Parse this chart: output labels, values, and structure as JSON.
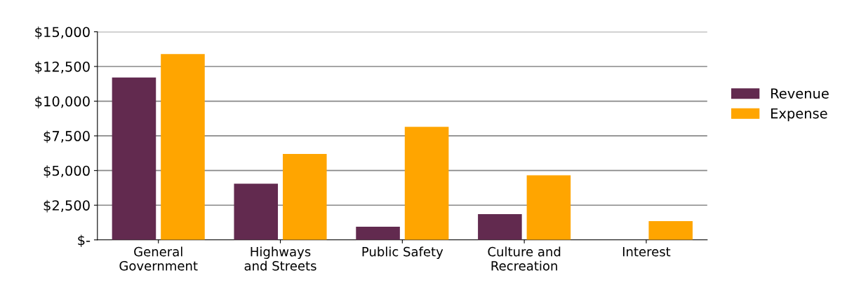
{
  "chart_data": {
    "type": "bar",
    "categories": [
      "General\nGovernment",
      "Highways\nand Streets",
      "Public Safety",
      "Culture and\nRecreation",
      "Interest"
    ],
    "series": [
      {
        "name": "Revenue",
        "color": "#622a4f",
        "values": [
          11700,
          4050,
          950,
          1850,
          0
        ]
      },
      {
        "name": "Expense",
        "color": "#ffa500",
        "values": [
          13400,
          6200,
          8150,
          4650,
          1350
        ]
      }
    ],
    "ylim": [
      0,
      15000
    ],
    "yticks": [
      {
        "value": 0,
        "label": "$-"
      },
      {
        "value": 2500,
        "label": "$2,500"
      },
      {
        "value": 5000,
        "label": "$5,000"
      },
      {
        "value": 7500,
        "label": "$7,500"
      },
      {
        "value": 10000,
        "label": "$10,000"
      },
      {
        "value": 12500,
        "label": "$12,500"
      },
      {
        "value": 15000,
        "label": "$15,000"
      }
    ],
    "grid": "y",
    "legend": "right"
  }
}
